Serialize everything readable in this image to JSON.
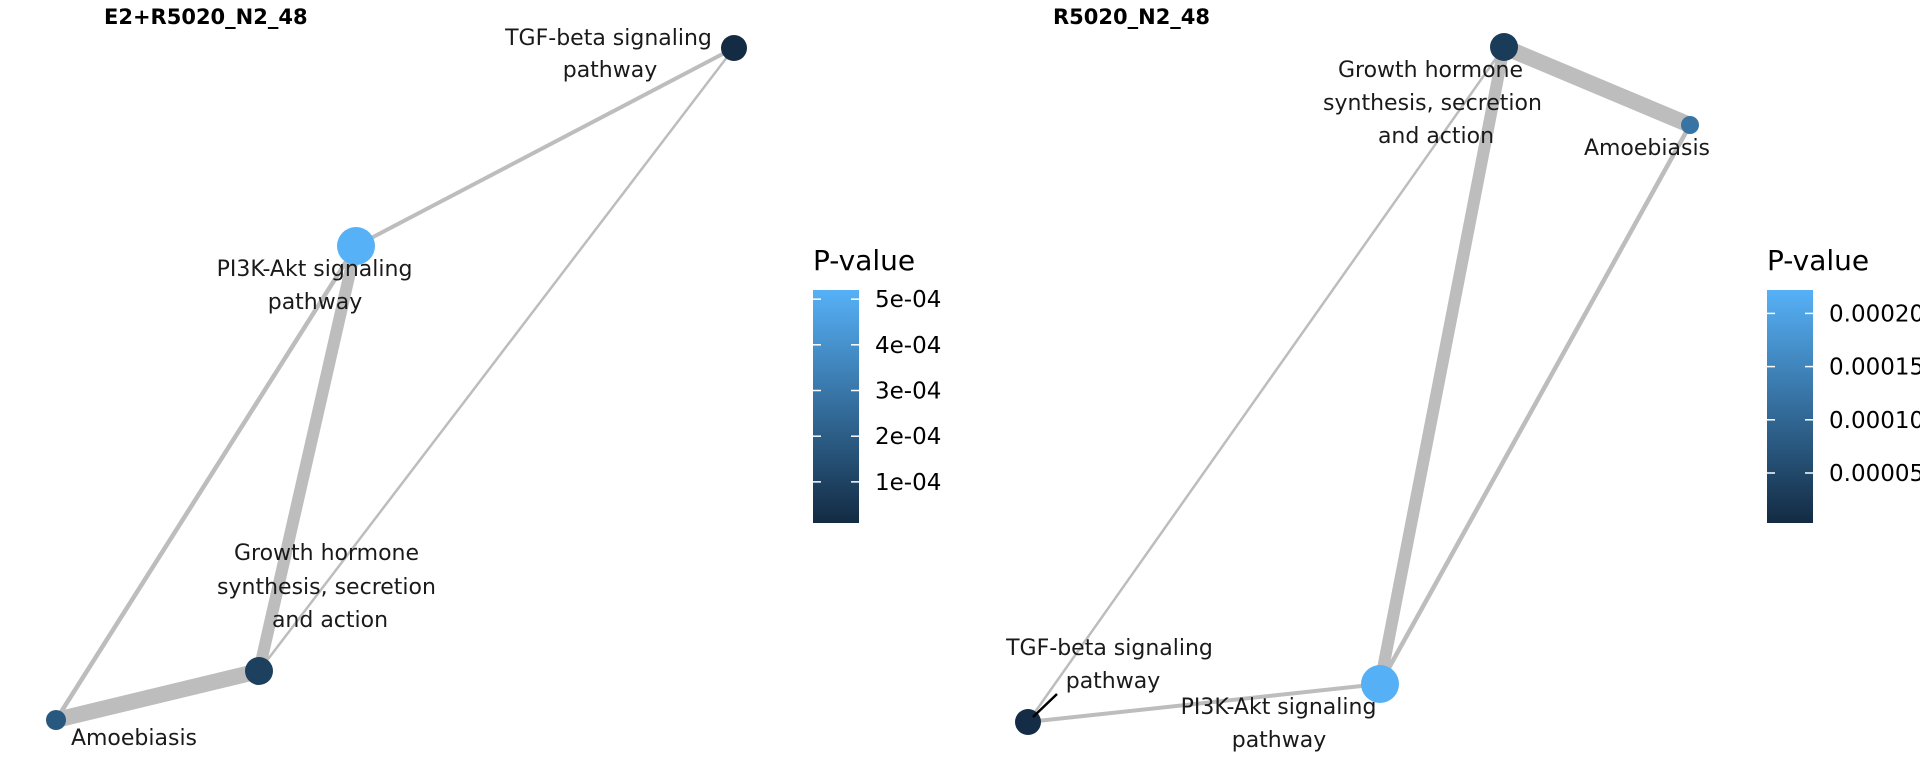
{
  "colors": {
    "low": "#132b43",
    "high": "#56b1f7",
    "edge": "#bdbdbd"
  },
  "panels": [
    {
      "title": "E2+R5020_N2_48",
      "nodes": [
        {
          "id": "tgf",
          "label": [
            "TGF-beta signaling",
            "pathway"
          ],
          "pvalue": 1e-05
        },
        {
          "id": "pi3k",
          "label": [
            "PI3K-Akt signaling",
            "pathway"
          ],
          "pvalue": 0.00052
        },
        {
          "id": "gh",
          "label": [
            "Growth hormone",
            "synthesis, secretion",
            "and action"
          ],
          "pvalue": 9e-05
        },
        {
          "id": "amoeb",
          "label": [
            "Amoebiasis"
          ],
          "pvalue": 0.00018
        }
      ],
      "edges": [
        {
          "from": "pi3k",
          "to": "tgf"
        },
        {
          "from": "pi3k",
          "to": "amoeb"
        },
        {
          "from": "pi3k",
          "to": "gh"
        },
        {
          "from": "tgf",
          "to": "gh"
        },
        {
          "from": "amoeb",
          "to": "gh"
        }
      ],
      "legend": {
        "title": "P-value",
        "min": 1e-05,
        "max": 0.00052,
        "ticks": [
          {
            "value": 0.0005,
            "label": "5e-04"
          },
          {
            "value": 0.0004,
            "label": "4e-04"
          },
          {
            "value": 0.0003,
            "label": "3e-04"
          },
          {
            "value": 0.0002,
            "label": "2e-04"
          },
          {
            "value": 0.0001,
            "label": "1e-04"
          }
        ]
      }
    },
    {
      "title": "R5020_N2_48",
      "nodes": [
        {
          "id": "gh",
          "label": [
            "Growth hormone",
            "synthesis, secretion",
            "and action"
          ],
          "pvalue": 3e-05
        },
        {
          "id": "amoeb",
          "label": [
            "Amoebiasis"
          ],
          "pvalue": 0.00012
        },
        {
          "id": "tgf",
          "label": [
            "TGF-beta signaling",
            "pathway"
          ],
          "pvalue": 5e-06
        },
        {
          "id": "pi3k",
          "label": [
            "PI3K-Akt signaling",
            "pathway"
          ],
          "pvalue": 0.00022
        }
      ],
      "edges": [
        {
          "from": "gh",
          "to": "amoeb"
        },
        {
          "from": "gh",
          "to": "pi3k"
        },
        {
          "from": "gh",
          "to": "tgf"
        },
        {
          "from": "amoeb",
          "to": "pi3k"
        },
        {
          "from": "tgf",
          "to": "pi3k"
        }
      ],
      "legend": {
        "title": "P-value",
        "min": 3e-06,
        "max": 0.000222,
        "ticks": [
          {
            "value": 0.0002,
            "label": "0.00020"
          },
          {
            "value": 0.00015,
            "label": "0.00015"
          },
          {
            "value": 0.0001,
            "label": "0.00010"
          },
          {
            "value": 5e-05,
            "label": "0.00005"
          }
        ]
      }
    }
  ]
}
